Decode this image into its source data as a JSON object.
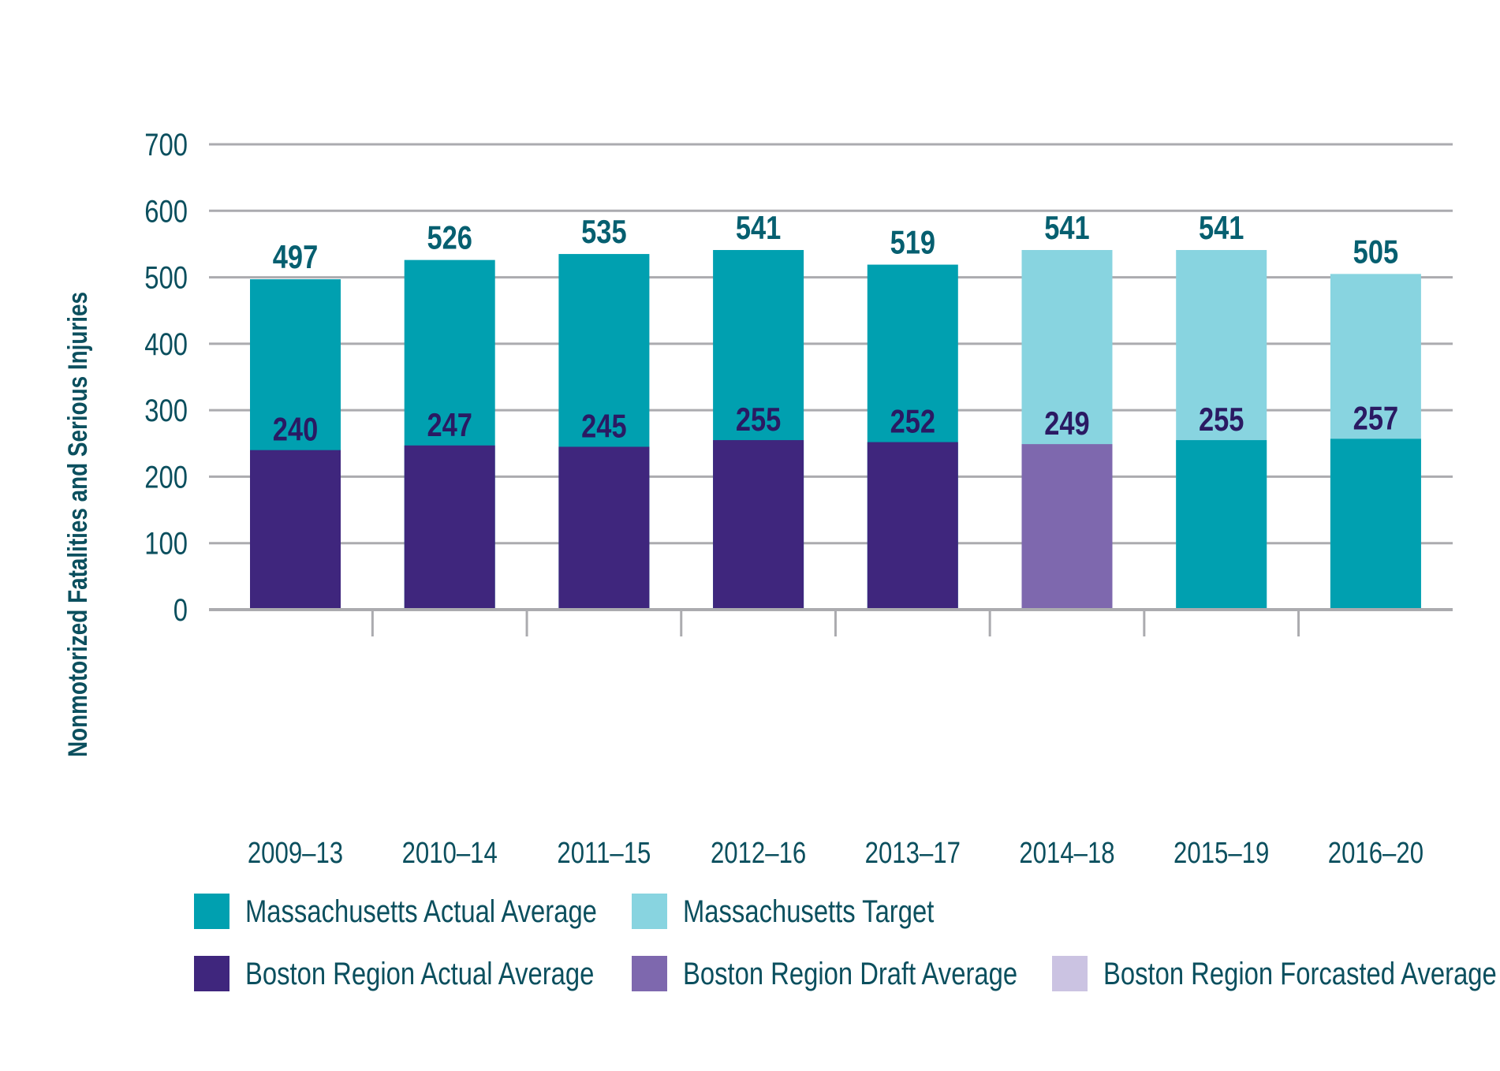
{
  "chart_data": {
    "type": "bar",
    "stacked": "overlay",
    "title": "",
    "xlabel": "",
    "ylabel": "Nonmotorized Fatalities and Serious Injuries",
    "ylim": [
      0,
      700
    ],
    "yticks": [
      0,
      100,
      200,
      300,
      400,
      500,
      600,
      700
    ],
    "grid": true,
    "legend_position": "bottom",
    "categories": [
      "2009–13",
      "2010–14",
      "2011–15",
      "2012–16",
      "2013–17",
      "2014–18",
      "2015–19",
      "2016–20"
    ],
    "massachusetts": {
      "values": [
        497,
        526,
        535,
        541,
        519,
        541,
        541,
        505
      ],
      "kind": [
        "actual",
        "actual",
        "actual",
        "actual",
        "actual",
        "target",
        "target",
        "target"
      ]
    },
    "boston_region": {
      "values": [
        240,
        247,
        245,
        255,
        252,
        249,
        255,
        257
      ],
      "kind": [
        "actual",
        "actual",
        "actual",
        "actual",
        "actual",
        "draft",
        "forecast",
        "forecast"
      ]
    },
    "colors": {
      "ma_actual": "#00A0B0",
      "ma_target": "#88D4E0",
      "br_actual": "#3F267D",
      "br_draft": "#7E68AE",
      "br_forecast_legend": "#CBC3E2",
      "br_forecast_bar": "#00A0B0",
      "ma_label": "#065F70",
      "br_label": "#2A1A63",
      "grid": "#ABABAF",
      "axis_text": "#0B4F5E"
    },
    "legend": [
      {
        "label": "Massachusetts Actual Average",
        "color": "#00A0B0"
      },
      {
        "label": "Massachusetts Target",
        "color": "#88D4E0"
      },
      {
        "label": "Boston Region Actual Average",
        "color": "#3F267D"
      },
      {
        "label": "Boston Region Draft Average",
        "color": "#7E68AE"
      },
      {
        "label": "Boston Region Forcasted Average",
        "color": "#CBC3E2"
      }
    ]
  }
}
